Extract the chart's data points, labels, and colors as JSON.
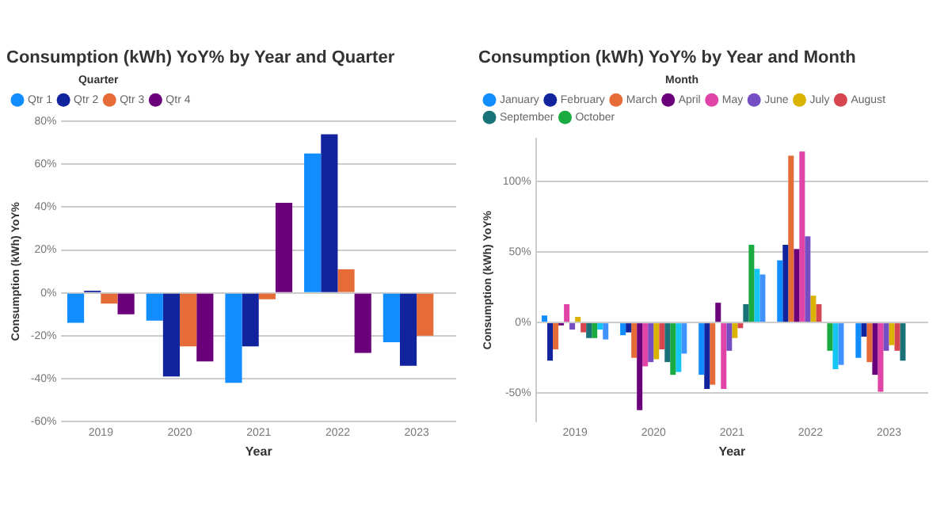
{
  "chart_data": [
    {
      "type": "bar",
      "title": "Consumption (kWh) YoY% by Year and Quarter",
      "legend_title": "Quarter",
      "xlabel": "Year",
      "ylabel": "Consumption (kWh) YoY%",
      "categories": [
        "2019",
        "2020",
        "2021",
        "2022",
        "2023"
      ],
      "series": [
        {
          "name": "Qtr 1",
          "color": "#118dff",
          "values": [
            -14,
            -13,
            -42,
            65,
            -23
          ]
        },
        {
          "name": "Qtr 2",
          "color": "#12239e",
          "values": [
            1,
            -39,
            -25,
            74,
            -34
          ]
        },
        {
          "name": "Qtr 3",
          "color": "#e66c37",
          "values": [
            -5,
            -25,
            -3,
            11,
            -20
          ]
        },
        {
          "name": "Qtr 4",
          "color": "#6b007b",
          "values": [
            -10,
            -32,
            42,
            -28,
            null
          ]
        }
      ],
      "ylim": [
        -60,
        80
      ],
      "yticks": [
        {
          "value": -60,
          "label": "-60%"
        },
        {
          "value": -40,
          "label": "-40%"
        },
        {
          "value": -20,
          "label": "-20%"
        },
        {
          "value": 0,
          "label": "0%"
        },
        {
          "value": 20,
          "label": "20%"
        },
        {
          "value": 40,
          "label": "40%"
        },
        {
          "value": 60,
          "label": "60%"
        },
        {
          "value": 80,
          "label": "80%"
        }
      ],
      "grid": "y",
      "legend": "top left"
    },
    {
      "type": "bar",
      "title": "Consumption (kWh) YoY% by Year and Month",
      "legend_title": "Month",
      "xlabel": "Year",
      "ylabel": "Consumption (kWh) YoY%",
      "categories": [
        "2019",
        "2020",
        "2021",
        "2022",
        "2023"
      ],
      "series": [
        {
          "name": "January",
          "color": "#118dff",
          "values": [
            5,
            -9,
            -37,
            44,
            -25
          ]
        },
        {
          "name": "February",
          "color": "#12239e",
          "values": [
            -27,
            -7,
            -47,
            55,
            -10
          ]
        },
        {
          "name": "March",
          "color": "#e66c37",
          "values": [
            -19,
            -25,
            -44,
            118,
            -28
          ]
        },
        {
          "name": "April",
          "color": "#6b007b",
          "values": [
            -2,
            -62,
            14,
            52,
            -37
          ]
        },
        {
          "name": "May",
          "color": "#e044a7",
          "values": [
            13,
            -31,
            -47,
            121,
            -49
          ]
        },
        {
          "name": "June",
          "color": "#744ec2",
          "values": [
            -5,
            -28,
            -20,
            61,
            -20
          ]
        },
        {
          "name": "July",
          "color": "#d9b300",
          "values": [
            4,
            -26,
            -11,
            19,
            -16
          ]
        },
        {
          "name": "August",
          "color": "#d64550",
          "values": [
            -7,
            -19,
            -4,
            13,
            -20
          ]
        },
        {
          "name": "September",
          "color": "#197278",
          "values": [
            -11,
            -28,
            13,
            0,
            -27
          ]
        },
        {
          "name": "October",
          "color": "#1aab40",
          "values": [
            -11,
            -37,
            55,
            -20,
            null
          ]
        },
        {
          "color": "#15c6f4",
          "values": [
            -5,
            -35,
            38,
            -33,
            null
          ]
        },
        {
          "color": "#4092ff",
          "values": [
            -12,
            -22,
            34,
            -30,
            null
          ]
        }
      ],
      "ylim": [
        -70,
        130
      ],
      "yticks": [
        {
          "value": -50,
          "label": "-50%"
        },
        {
          "value": 0,
          "label": "0%"
        },
        {
          "value": 50,
          "label": "50%"
        },
        {
          "value": 100,
          "label": "100%"
        }
      ],
      "grid": "y",
      "legend": "top left"
    }
  ]
}
